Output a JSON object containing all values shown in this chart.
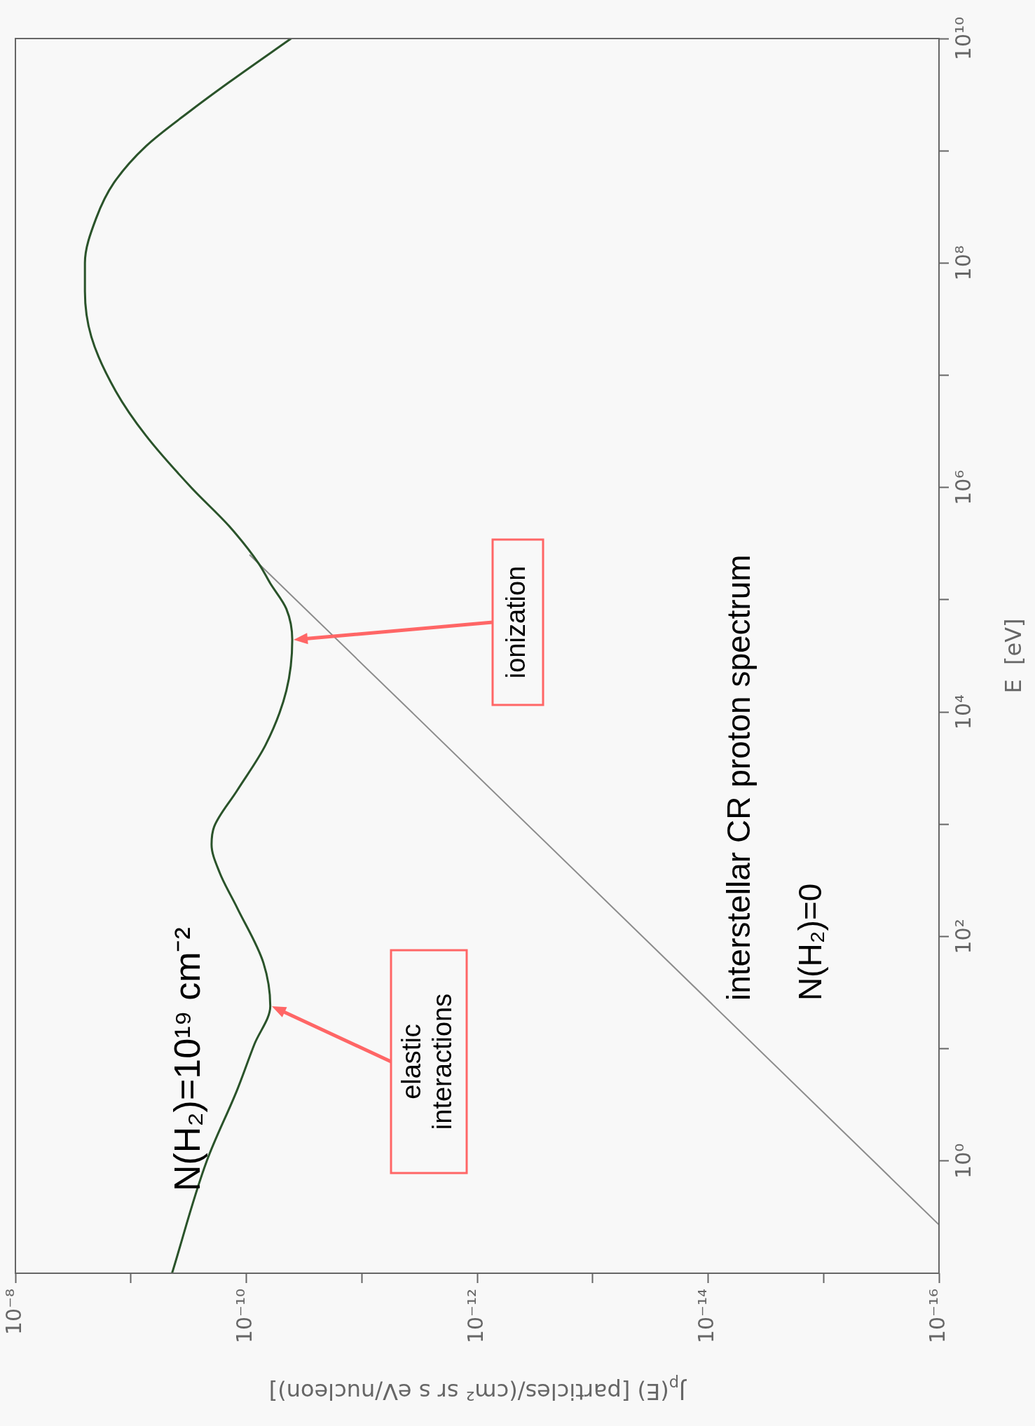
{
  "chart_data": {
    "type": "line",
    "xlabel": "J$_{p}$(E) [particles/(cm² sr s eV/nucleon)]",
    "ylabel": "E  [eV]",
    "log": "xy",
    "legend": false,
    "grid": false,
    "marker": "none",
    "line_style": "solid",
    "xlim": [
      1e-08,
      1e-16
    ],
    "ylim": [
      0.1,
      10000000000.0
    ],
    "xticks": [
      {
        "value": 1e-08,
        "label": "10⁻⁸"
      },
      {
        "value": 1e-09,
        "label": null
      },
      {
        "value": 1e-10,
        "label": "10⁻¹⁰"
      },
      {
        "value": 1e-11,
        "label": null
      },
      {
        "value": 1e-12,
        "label": "10⁻¹²"
      },
      {
        "value": 1e-13,
        "label": null
      },
      {
        "value": 1e-14,
        "label": "10⁻¹⁴"
      },
      {
        "value": 1e-15,
        "label": null
      },
      {
        "value": 1e-16,
        "label": "10⁻¹⁶"
      }
    ],
    "yticks": [
      {
        "value": 1,
        "label": "10⁰"
      },
      {
        "value": 10,
        "label": null
      },
      {
        "value": 100,
        "label": "10²"
      },
      {
        "value": 1000,
        "label": null
      },
      {
        "value": 10000,
        "label": "10⁴"
      },
      {
        "value": 100000,
        "label": null
      },
      {
        "value": 1000000,
        "label": "10⁶"
      },
      {
        "value": 10000000,
        "label": null
      },
      {
        "value": 100000000,
        "label": "10⁸"
      },
      {
        "value": 1000000000,
        "label": null
      },
      {
        "value": 10000000000,
        "label": "10¹⁰"
      }
    ],
    "series": [
      {
        "name": "N(H₂)=10¹⁹ cm⁻²",
        "color": "#2a532a",
        "x": [
          4.4e-10,
          2.2e-10,
          1.2e-10,
          8.5e-11,
          6.2e-11,
          7.1e-11,
          1.2e-10,
          1.7e-10,
          2e-10,
          1.9e-10,
          1.2e-10,
          6.8e-11,
          4.5e-11,
          4e-11,
          4.5e-11,
          6.2e-11,
          7.8e-11,
          1.4e-10,
          3e-10,
          7.4e-10,
          1.35e-09,
          2.2e-09,
          2.5e-09,
          2.5e-09,
          2e-09,
          1.4e-09,
          7.4e-10,
          3e-10,
          1.4e-10,
          4.1e-11
        ],
        "values": [
          0.1,
          1,
          4.3,
          11,
          24,
          58,
          180,
          370,
          660,
          950,
          2000,
          5100,
          15500,
          44000,
          83000,
          140000,
          210000,
          450000,
          1000000,
          2900000,
          7200000,
          22000000,
          56000000,
          100000000,
          250000000,
          520000000,
          1100000000,
          2300000000,
          4100000000,
          10000000000
        ]
      },
      {
        "name": "N(H₂)=0",
        "color": "#8c8c8c",
        "x": [
          1e-16,
          3.7e-16,
          3.7e-12,
          9.3e-11
        ],
        "values": [
          0.27,
          1,
          10000,
          250000
        ]
      }
    ],
    "annotations": [
      "interstellar CR proton spectrum",
      "elastic interactions",
      "ionization"
    ]
  }
}
